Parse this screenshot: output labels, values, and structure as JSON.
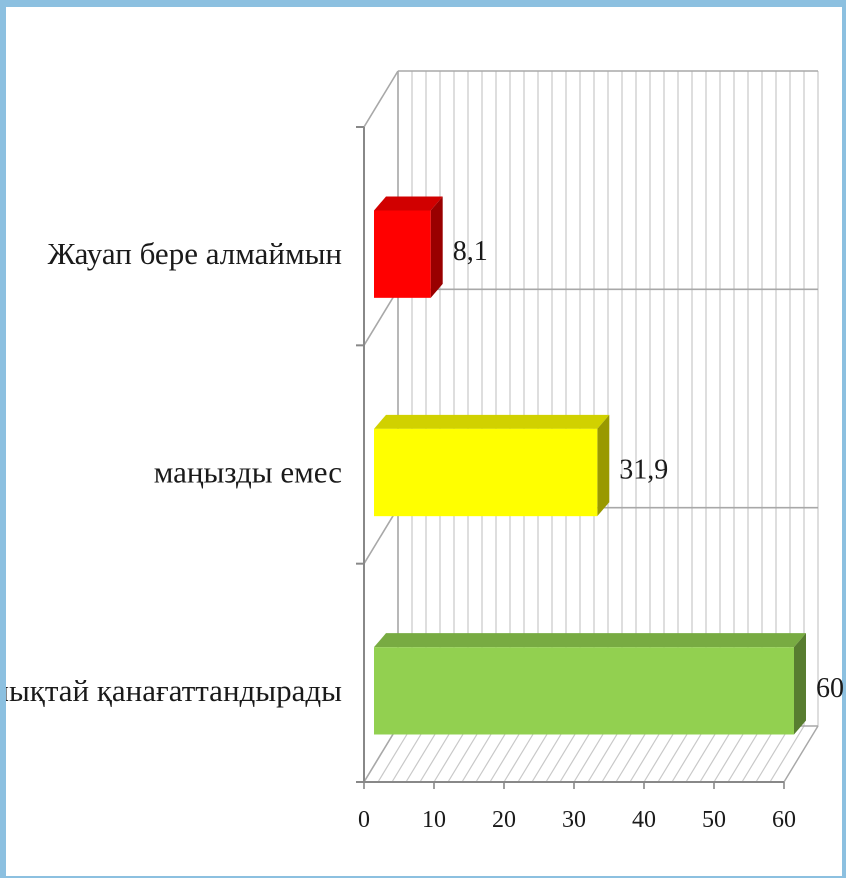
{
  "chart_data": {
    "type": "bar",
    "orientation": "horizontal",
    "style": "3d",
    "categories": [
      "Жауап бере алмаймын",
      "маңызды емес",
      "толықтай қанағаттандырады"
    ],
    "values": [
      8.1,
      31.9,
      60
    ],
    "value_labels": [
      "8,1",
      "31,9",
      "60"
    ],
    "colors": [
      "#ff0000",
      "#ffff00",
      "#92d050"
    ],
    "xlim": [
      0,
      60
    ],
    "x_ticks": [
      "0",
      "10",
      "20",
      "30",
      "40",
      "50",
      "60"
    ],
    "grid": true,
    "title": "",
    "xlabel": "",
    "ylabel": ""
  }
}
